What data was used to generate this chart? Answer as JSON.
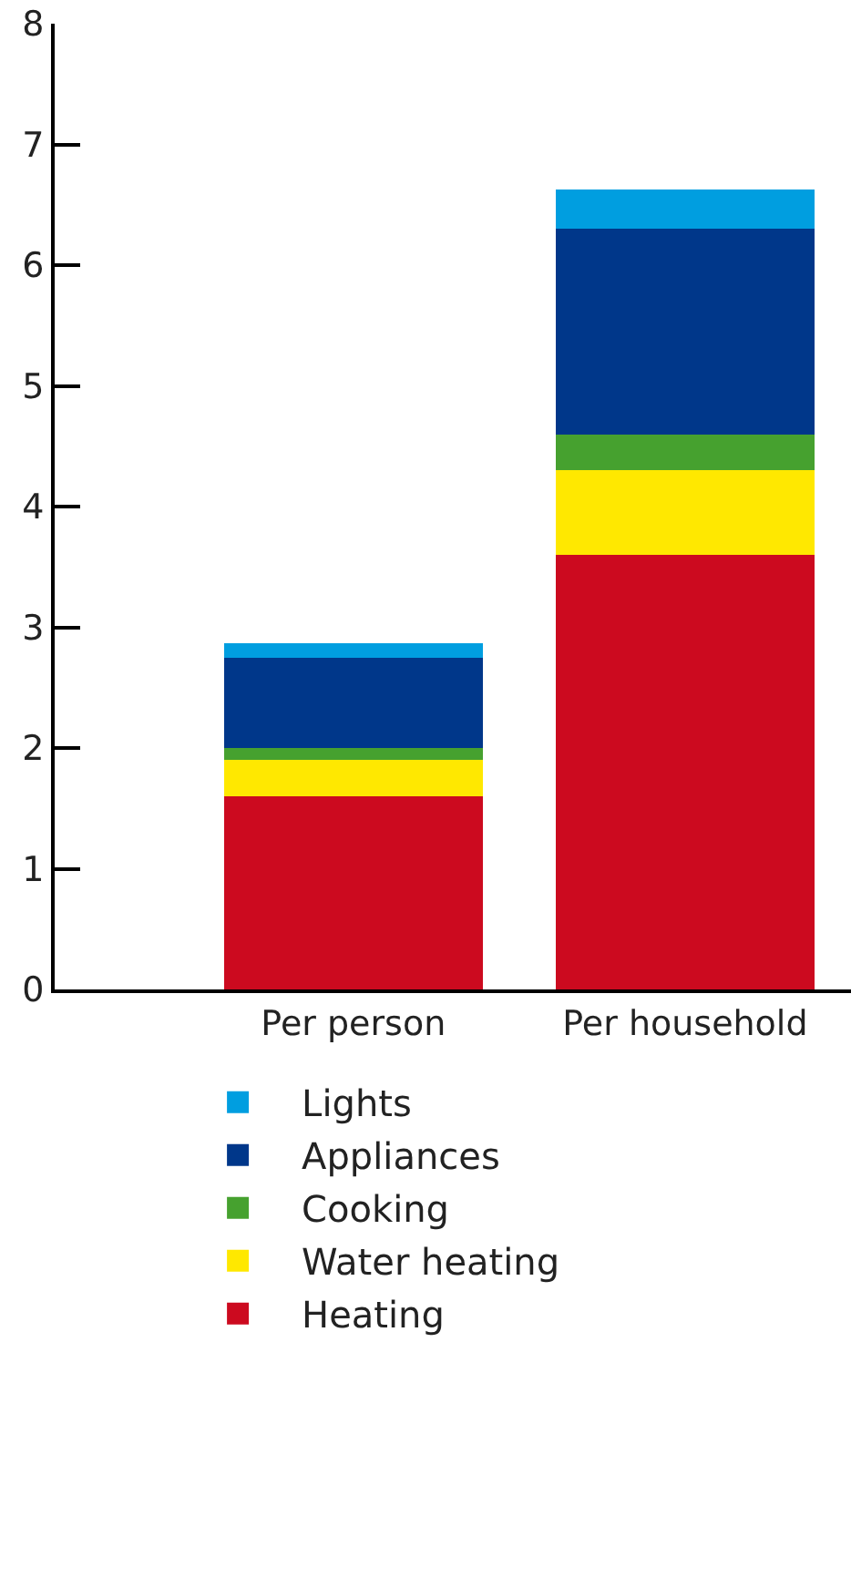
{
  "chart_data": {
    "type": "bar",
    "stacked": true,
    "categories": [
      "Per person",
      "Per household"
    ],
    "series": [
      {
        "name": "Heating",
        "color": "#cc0a1f",
        "values": [
          1.6,
          3.6
        ]
      },
      {
        "name": "Water heating",
        "color": "#ffe800",
        "values": [
          0.3,
          0.7
        ]
      },
      {
        "name": "Cooking",
        "color": "#46a12f",
        "values": [
          0.1,
          0.3
        ]
      },
      {
        "name": "Appliances",
        "color": "#00378a",
        "values": [
          0.75,
          1.7
        ]
      },
      {
        "name": "Lights",
        "color": "#009ee0",
        "values": [
          0.12,
          0.33
        ]
      }
    ],
    "ylim": [
      0,
      8
    ],
    "yticks": [
      0,
      1,
      2,
      3,
      4,
      5,
      6,
      7,
      8
    ],
    "grid": false,
    "legend": "bottom"
  }
}
